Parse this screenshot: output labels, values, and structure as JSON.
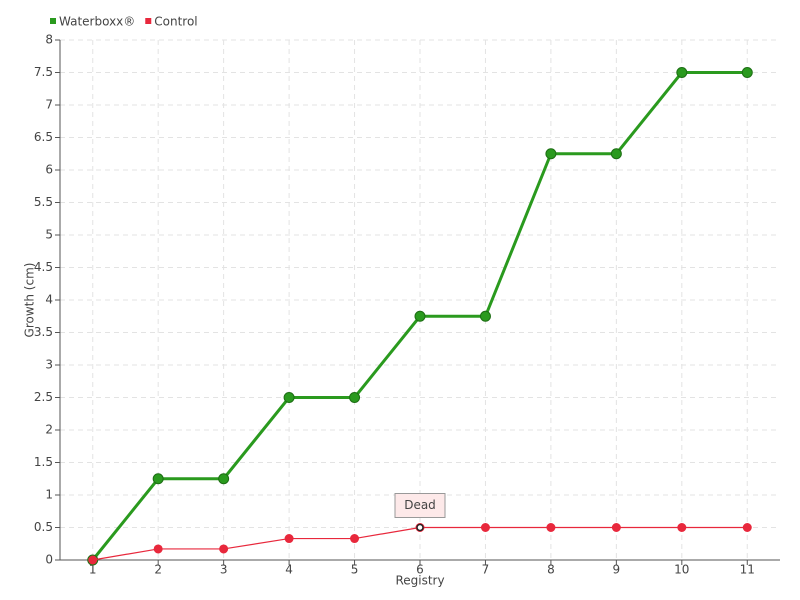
{
  "chart_data": {
    "type": "line",
    "x_label": "Registry",
    "y_label": "Growth (cm)",
    "x": [
      1,
      2,
      3,
      4,
      5,
      6,
      7,
      8,
      9,
      10,
      11
    ],
    "xlim": [
      0.5,
      11.5
    ],
    "xticks": [
      1,
      2,
      3,
      4,
      5,
      6,
      7,
      8,
      9,
      10,
      11
    ],
    "ylim": [
      0,
      8
    ],
    "yticks": [
      0,
      0.5,
      1,
      1.5,
      2,
      2.5,
      3,
      3.5,
      4,
      4.5,
      5,
      5.5,
      6,
      6.5,
      7,
      7.5,
      8
    ],
    "grid": true,
    "legend": "top-left",
    "series": [
      {
        "name": "Waterboxx®",
        "color": "#2a9a1e",
        "values": [
          0,
          1.25,
          1.25,
          2.5,
          2.5,
          3.75,
          3.75,
          6.25,
          6.25,
          7.5,
          7.5
        ]
      },
      {
        "name": "Control",
        "color": "#e8283c",
        "values": [
          0,
          0.17,
          0.17,
          0.33,
          0.33,
          0.5,
          0.5,
          0.5,
          0.5,
          0.5,
          0.5
        ]
      }
    ],
    "annotations": [
      {
        "text": "Dead",
        "x": 6,
        "y": 0.5
      }
    ]
  }
}
